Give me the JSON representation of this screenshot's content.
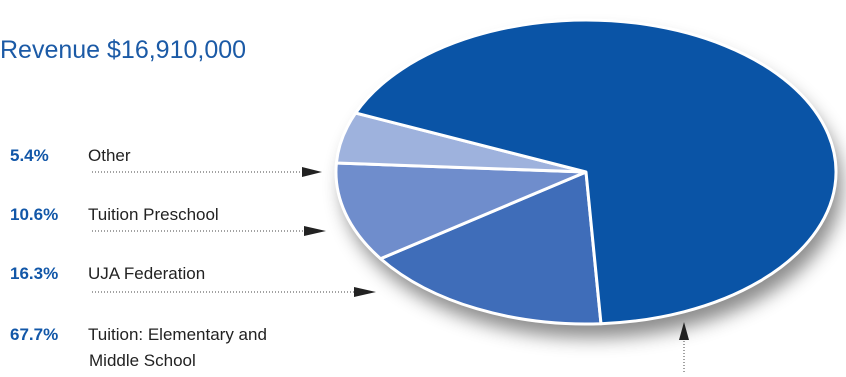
{
  "title": "Revenue $16,910,000",
  "chart_data": {
    "type": "pie",
    "title": "Revenue $16,910,000",
    "slices": [
      {
        "label": "Tuition: Elementary and Middle School",
        "value": 67.7,
        "display": "67.7%",
        "color": "#0a54a6"
      },
      {
        "label": "UJA Federation",
        "value": 16.3,
        "display": "16.3%",
        "color": "#3f6db9"
      },
      {
        "label": "Tuition Preschool",
        "value": 10.6,
        "display": "10.6%",
        "color": "#6f8dcc"
      },
      {
        "label": "Other",
        "value": 5.4,
        "display": "5.4%",
        "color": "#9eb2dd"
      }
    ]
  },
  "legend": [
    {
      "pct": "5.4",
      "label": "Other"
    },
    {
      "pct": "10.6",
      "label": "Tuition Preschool"
    },
    {
      "pct": "16.3",
      "label": "UJA Federation"
    },
    {
      "pct": "67.7",
      "label_line1": "Tuition: Elementary and",
      "label_line2": "Middle School"
    }
  ],
  "percent_symbol": "%"
}
